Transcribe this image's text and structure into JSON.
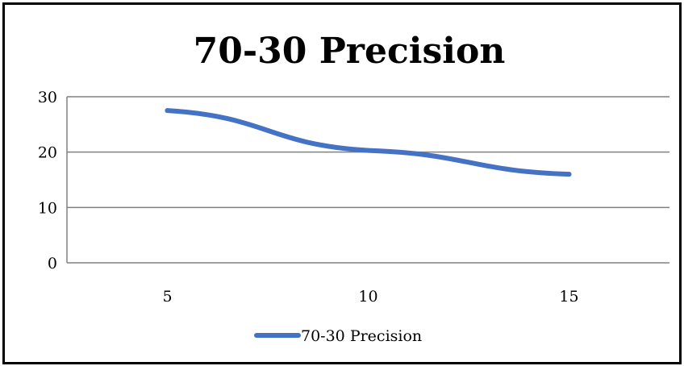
{
  "chart_data": {
    "type": "line",
    "title": "70-30 Precision",
    "xlabel": "",
    "ylabel": "",
    "categories": [
      "5",
      "10",
      "15"
    ],
    "series": [
      {
        "name": "70-30 Precision",
        "values": [
          27.5,
          20.3,
          16.0
        ],
        "color": "#4472C4"
      }
    ],
    "ylim": [
      0,
      30
    ],
    "yticks": [
      "0",
      "10",
      "20",
      "30"
    ],
    "grid": true,
    "legend": "bottom"
  }
}
